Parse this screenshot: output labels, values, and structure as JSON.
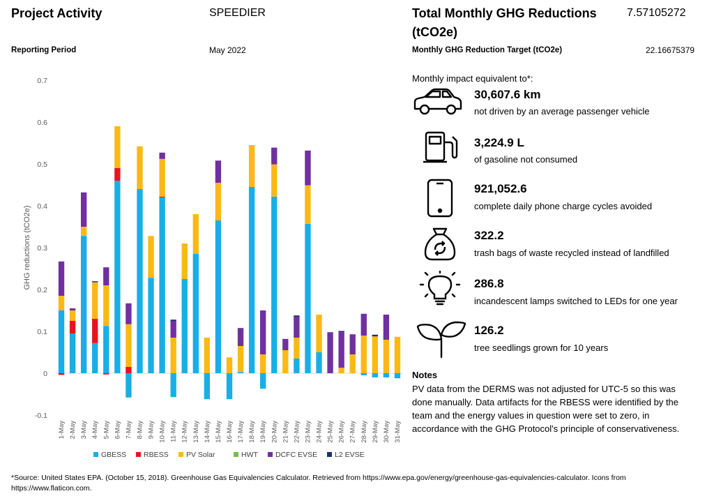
{
  "header": {
    "project_activity_label": "Project Activity",
    "project_activity_value": "SPEEDIER",
    "reporting_period_label": "Reporting Period",
    "reporting_period_value": "May 2022",
    "total_reductions_label_line1": "Total Monthly GHG Reductions",
    "total_reductions_label_line2": "(tCO2e)",
    "total_reductions_value": "7.57105272",
    "target_label": "Monthly GHG Reduction Target (tCO2e)",
    "target_value": "22.16675379"
  },
  "equivalents": {
    "intro": "Monthly impact equivalent to*:",
    "items": [
      {
        "value": "30,607.6 km",
        "desc": "not driven by an average passenger vehicle",
        "icon": "car-icon"
      },
      {
        "value": "3,224.9 L",
        "desc": "of gasoline not consumed",
        "icon": "fuel-pump-icon"
      },
      {
        "value": "921,052.6",
        "desc": "complete daily phone charge cycles avoided",
        "icon": "phone-icon"
      },
      {
        "value": "322.2",
        "desc": "trash bags of waste recycled instead of landfilled",
        "icon": "recycle-bag-icon"
      },
      {
        "value": "286.8",
        "desc": "incandescent lamps switched to LEDs for one year",
        "icon": "lightbulb-icon"
      },
      {
        "value": "126.2",
        "desc": "tree seedlings grown for 10 years",
        "icon": "seedling-icon"
      }
    ]
  },
  "notes": {
    "title": "Notes",
    "text": "PV data from the DERMS was not adjusted for UTC-5 so this was done manually. Data artifacts for the RBESS were identified by the team and the energy values in question were set to zero, in accordance with the GHG Protocol's principle of conservativeness."
  },
  "footer": {
    "source": "*Source: United States EPA. (October 15, 2018). Greenhouse Gas Equivalencies Calculator. Retrieved from https://www.epa.gov/energy/greenhouse-gas-equivalencies-calculator. Icons from https://www.flaticon.com."
  },
  "chart_data": {
    "type": "bar",
    "stacked": true,
    "ylabel": "GHG reductions (tCO2e)",
    "ylim": [
      -0.1,
      0.7
    ],
    "yticks": [
      -0.1,
      0,
      0.1,
      0.2,
      0.3,
      0.4,
      0.5,
      0.6,
      0.7
    ],
    "ytick_labels": [
      "-0.1",
      "0",
      "0.1",
      "0.2",
      "0.3",
      "0.4",
      "0.5",
      "0.6",
      "0.7"
    ],
    "grid": false,
    "legend_position": "bottom",
    "categories": [
      "1-May",
      "2-May",
      "3-May",
      "4-May",
      "5-May",
      "6-May",
      "7-May",
      "8-May",
      "9-May",
      "10-May",
      "11-May",
      "12-May",
      "13-May",
      "14-May",
      "15-May",
      "16-May",
      "17-May",
      "18-May",
      "19-May",
      "20-May",
      "21-May",
      "22-May",
      "23-May",
      "24-May",
      "25-May",
      "26-May",
      "27-May",
      "28-May",
      "29-May",
      "30-May",
      "31-May"
    ],
    "series": [
      {
        "name": "GBESS",
        "color": "#1BADE6",
        "values": [
          0.15,
          0.095,
          0.328,
          0.072,
          0.113,
          0.46,
          -0.058,
          0.44,
          0.228,
          0.42,
          -0.057,
          0.225,
          0.285,
          -0.062,
          0.365,
          -0.062,
          0.003,
          0.445,
          -0.037,
          0.422,
          0.0,
          0.035,
          0.357,
          0.05,
          0.0,
          0.0,
          0.0,
          -0.005,
          -0.01,
          -0.01,
          -0.012
        ]
      },
      {
        "name": "RBESS",
        "color": "#E8141C",
        "values": [
          -0.004,
          0.03,
          0.0,
          0.058,
          -0.003,
          0.03,
          0.015,
          0.0,
          0.0,
          0.002,
          0.0,
          0.0,
          0.0,
          0.0,
          0.0,
          0.0,
          0.0,
          0.0,
          0.0,
          0.0,
          0.0,
          0.0,
          0.0,
          0.0,
          0.0,
          0.0,
          0.0,
          0.0,
          0.0,
          0.0,
          0.0
        ]
      },
      {
        "name": "PV Solar",
        "color": "#FBB917",
        "values": [
          0.035,
          0.025,
          0.022,
          0.087,
          0.097,
          0.1,
          0.102,
          0.102,
          0.1,
          0.09,
          0.085,
          0.085,
          0.095,
          0.085,
          0.09,
          0.038,
          0.062,
          0.1,
          0.045,
          0.077,
          0.055,
          0.05,
          0.092,
          0.09,
          0.0,
          0.013,
          0.045,
          0.09,
          0.088,
          0.08,
          0.087
        ]
      },
      {
        "name": "HWT",
        "color": "#72C04B",
        "values": [
          0,
          0,
          0,
          0,
          0,
          0,
          0,
          0,
          0,
          0,
          0,
          0,
          0,
          0,
          0,
          0,
          0,
          0,
          0,
          0,
          0,
          0,
          0,
          0,
          0,
          0,
          0,
          0,
          0,
          0,
          0
        ]
      },
      {
        "name": "DCFC EVSE",
        "color": "#7030A0",
        "values": [
          0.082,
          0.005,
          0.082,
          0.002,
          0.043,
          0.0,
          0.05,
          0.0,
          0.0,
          0.015,
          0.04,
          0.0,
          0.0,
          0.0,
          0.053,
          0.0,
          0.043,
          0.0,
          0.105,
          0.04,
          0.027,
          0.05,
          0.083,
          0.0,
          0.098,
          0.085,
          0.048,
          0.052,
          0.0,
          0.06,
          0.0
        ]
      },
      {
        "name": "L2 EVSE",
        "color": "#1F2F6B",
        "values": [
          0,
          0,
          0,
          0.001,
          0,
          0,
          0,
          0,
          0,
          0,
          0.003,
          0,
          0,
          0,
          0,
          0,
          0,
          0,
          0,
          0,
          0,
          0.003,
          0,
          0,
          0,
          0.003,
          0,
          0,
          0.004,
          0,
          0
        ]
      }
    ]
  }
}
